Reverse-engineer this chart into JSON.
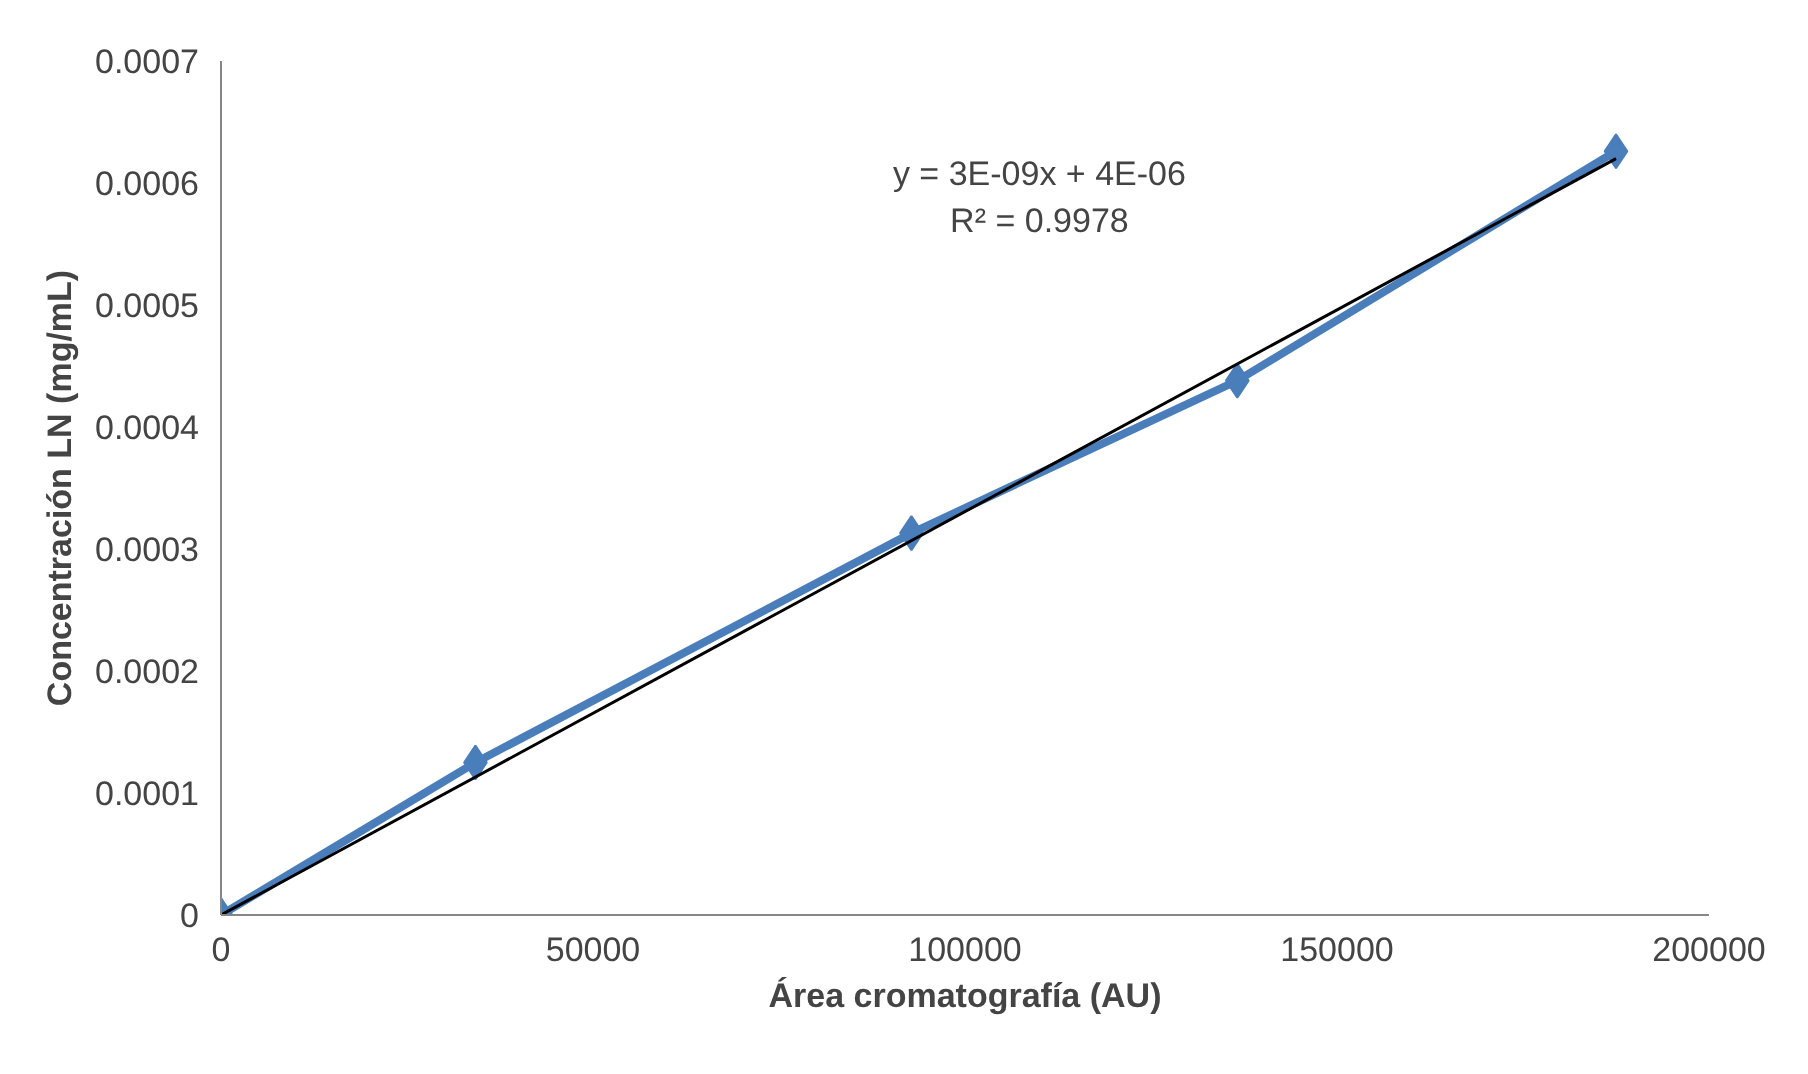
{
  "chart_data": {
    "type": "line",
    "xlabel": "Área cromatografía (AU)",
    "ylabel": "Concentración LN (mg/mL)",
    "xlim": [
      0,
      200000
    ],
    "xticks": [
      0,
      50000,
      100000,
      150000,
      200000
    ],
    "ylim": [
      0,
      0.0007
    ],
    "yticks": [
      0,
      0.0001,
      0.0002,
      0.0003,
      0.0004,
      0.0005,
      0.0006,
      0.0007
    ],
    "grid": false,
    "marker": "diamond",
    "line_style": "solid",
    "x": [
      0,
      34200,
      92800,
      136600,
      187500
    ],
    "series": [
      {
        "color": "#4a7ebb",
        "values": [
          0,
          0.000125,
          0.000313,
          0.000438,
          0.000626
        ]
      },
      {
        "type": "line",
        "marker": "none",
        "color": "#000000",
        "x": [
          0,
          187500
        ],
        "values": [
          0,
          0.00062
        ]
      }
    ],
    "annotations": [
      "y = 3E-09x + 4E-06",
      "R² = 0.9978"
    ]
  }
}
